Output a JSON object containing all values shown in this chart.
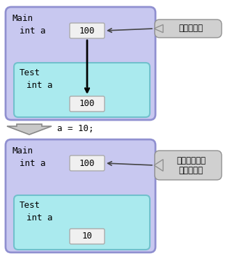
{
  "bg_color": "#ffffff",
  "outer_face": "#c8c8f0",
  "outer_edge": "#9090d0",
  "inner_face": "#aaeaee",
  "inner_edge": "#70c0cc",
  "vbox_face": "#f0f0f0",
  "vbox_edge": "#aaaaaa",
  "callout_face": "#d0d0d0",
  "callout_edge": "#909090",
  "mid_arrow_face": "#c8c8c8",
  "mid_arrow_edge": "#888888",
  "text_color": "#000000",
  "label_main": "Main",
  "label_int_a": "int a",
  "label_test": "Test",
  "val_100": "100",
  "val_10": "10",
  "callout1_text": "値をコピー",
  "callout2_l1": "こっちの値は",
  "callout2_l2": "変わらない",
  "mid_text": "a = 10;"
}
